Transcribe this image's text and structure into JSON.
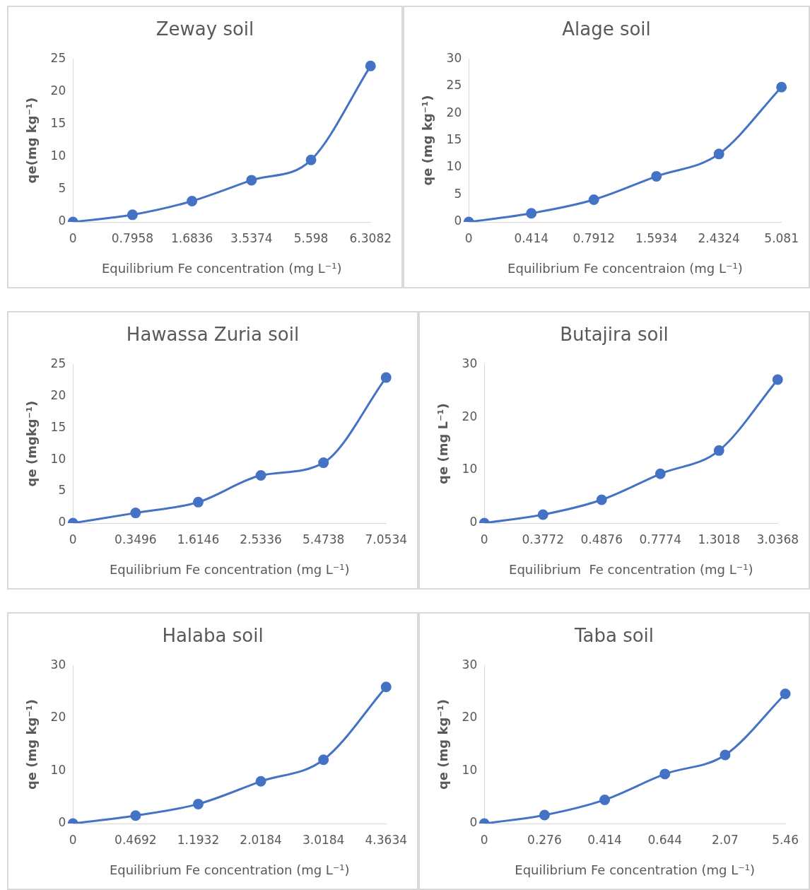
{
  "chart_data": [
    {
      "type": "line",
      "title": "Zeway soil",
      "xlabel": "Equilibrium Fe concentration (mg L⁻¹)",
      "ylabel": "qe(mg kg⁻¹)",
      "categories": [
        "0",
        "0.7958",
        "1.6836",
        "3.5374",
        "5.598",
        "6.3082"
      ],
      "series": [
        {
          "color": "#4472c4",
          "values": [
            0,
            1.1,
            3.2,
            6.4,
            9.5,
            23.9
          ]
        }
      ],
      "ylim": [
        0,
        25
      ],
      "yticks": [
        0,
        5,
        10,
        15,
        20,
        25
      ],
      "grid": false,
      "legend": false,
      "marker": "circle",
      "line_style": "solid"
    },
    {
      "type": "line",
      "title": "Alage soil",
      "xlabel": "Equilibrium Fe concentraion (mg L⁻¹)",
      "ylabel": "qe (mg kg⁻¹)",
      "categories": [
        "0",
        "0.414",
        "0.7912",
        "1.5934",
        "2.4324",
        "5.081"
      ],
      "series": [
        {
          "color": "#4472c4",
          "values": [
            0,
            1.6,
            4.1,
            8.4,
            12.5,
            24.8
          ]
        }
      ],
      "ylim": [
        0,
        30
      ],
      "yticks": [
        0,
        5,
        10,
        15,
        20,
        25,
        30
      ],
      "grid": false,
      "legend": false,
      "marker": "circle",
      "line_style": "solid"
    },
    {
      "type": "line",
      "title": "Hawassa Zuria soil",
      "xlabel": "Equilibrium Fe concentration (mg L⁻¹)",
      "ylabel": "qe (mgkg⁻¹)",
      "categories": [
        "0",
        "0.3496",
        "1.6146",
        "2.5336",
        "5.4738",
        "7.0534"
      ],
      "series": [
        {
          "color": "#4472c4",
          "values": [
            0,
            1.6,
            3.3,
            7.5,
            9.5,
            22.9
          ]
        }
      ],
      "ylim": [
        0,
        25
      ],
      "yticks": [
        0,
        5,
        10,
        15,
        20,
        25
      ],
      "grid": false,
      "legend": false,
      "marker": "circle",
      "line_style": "solid"
    },
    {
      "type": "line",
      "title": "Butajira soil",
      "xlabel": "Equilibrium  Fe concentration (mg L⁻¹)",
      "ylabel": "qe (mg L⁻¹)",
      "categories": [
        "0",
        "0.3772",
        "0.4876",
        "0.7774",
        "1.3018",
        "3.0368"
      ],
      "series": [
        {
          "color": "#4472c4",
          "values": [
            0,
            1.6,
            4.4,
            9.3,
            13.7,
            27.1
          ]
        }
      ],
      "ylim": [
        0,
        30
      ],
      "yticks": [
        0,
        10,
        20,
        30
      ],
      "grid": false,
      "legend": false,
      "marker": "circle",
      "line_style": "solid"
    },
    {
      "type": "line",
      "title": "Halaba soil",
      "xlabel": "Equilibrium Fe concentration (mg L⁻¹)",
      "ylabel": "qe (mg kg⁻¹)",
      "categories": [
        "0",
        "0.4692",
        "1.1932",
        "2.0184",
        "3.0184",
        "4.3634"
      ],
      "series": [
        {
          "color": "#4472c4",
          "values": [
            0,
            1.5,
            3.7,
            8.0,
            12.1,
            25.9
          ]
        }
      ],
      "ylim": [
        0,
        30
      ],
      "yticks": [
        0,
        10,
        20,
        30
      ],
      "grid": false,
      "legend": false,
      "marker": "circle",
      "line_style": "solid"
    },
    {
      "type": "line",
      "title": "Taba soil",
      "xlabel": "Equilibrium Fe concentration (mg L⁻¹)",
      "ylabel": "qe (mg kg⁻¹)",
      "categories": [
        "0",
        "0.276",
        "0.414",
        "0.644",
        "2.07",
        "5.46"
      ],
      "series": [
        {
          "color": "#4472c4",
          "values": [
            0,
            1.6,
            4.5,
            9.4,
            13.0,
            24.6
          ]
        }
      ],
      "ylim": [
        0,
        30
      ],
      "yticks": [
        0,
        10,
        20,
        30
      ],
      "grid": false,
      "legend": false,
      "marker": "circle",
      "line_style": "solid"
    }
  ]
}
